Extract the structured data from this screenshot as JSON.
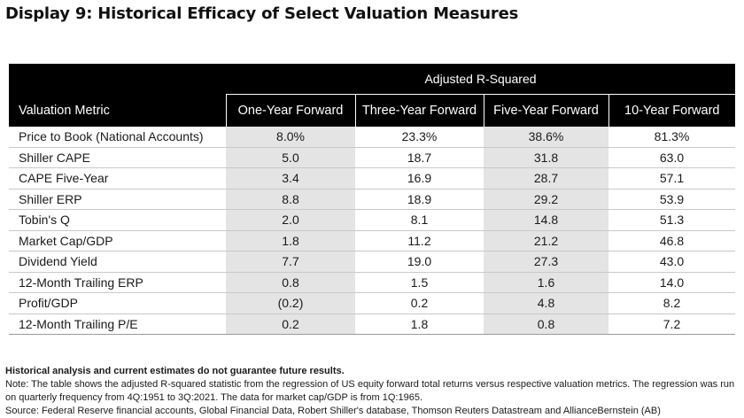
{
  "title": "Display 9: Historical Efficacy of Select Valuation Measures",
  "table": {
    "group_header": "Adjusted R-Squared",
    "metric_header": "Valuation Metric",
    "columns": [
      "One-Year Forward",
      "Three-Year Forward",
      "Five-Year Forward",
      "10-Year Forward"
    ],
    "rows": [
      {
        "metric": "Price to Book (National Accounts)",
        "values": [
          "8.0%",
          "23.3%",
          "38.6%",
          "81.3%"
        ]
      },
      {
        "metric": "Shiller CAPE",
        "values": [
          "5.0",
          "18.7",
          "31.8",
          "63.0"
        ]
      },
      {
        "metric": "CAPE Five-Year",
        "values": [
          "3.4",
          "16.9",
          "28.7",
          "57.1"
        ]
      },
      {
        "metric": "Shiller ERP",
        "values": [
          "8.8",
          "18.9",
          "29.2",
          "53.9"
        ]
      },
      {
        "metric": "Tobin's Q",
        "values": [
          "2.0",
          "8.1",
          "14.8",
          "51.3"
        ]
      },
      {
        "metric": "Market Cap/GDP",
        "values": [
          "1.8",
          "11.2",
          "21.2",
          "46.8"
        ]
      },
      {
        "metric": "Dividend Yield",
        "values": [
          "7.7",
          "19.0",
          "27.3",
          "43.0"
        ]
      },
      {
        "metric": "12-Month Trailing ERP",
        "values": [
          "0.8",
          "1.5",
          "1.6",
          "14.0"
        ]
      },
      {
        "metric": "Profit/GDP",
        "values": [
          "(0.2)",
          "0.2",
          "4.8",
          "8.2"
        ]
      },
      {
        "metric": "12-Month Trailing P/E",
        "values": [
          "0.2",
          "1.8",
          "0.8",
          "7.2"
        ]
      }
    ],
    "shaded_color": "#e4e4e4",
    "header_color": "#000000"
  },
  "footer": {
    "disclaimer": "Historical analysis and current estimates do not guarantee future results.",
    "note": "Note: The table shows the adjusted R-squared statistic from the regression of US equity forward total returns versus respective valuation metrics. The regression was run on quarterly frequency from 4Q:1951 to 3Q:2021. The data for market cap/GDP is from 1Q:1965.",
    "source": "Source: Federal Reserve financial accounts, Global Financial Data, Robert Shiller's database, Thomson Reuters Datastream and AllianceBernstein (AB)"
  }
}
